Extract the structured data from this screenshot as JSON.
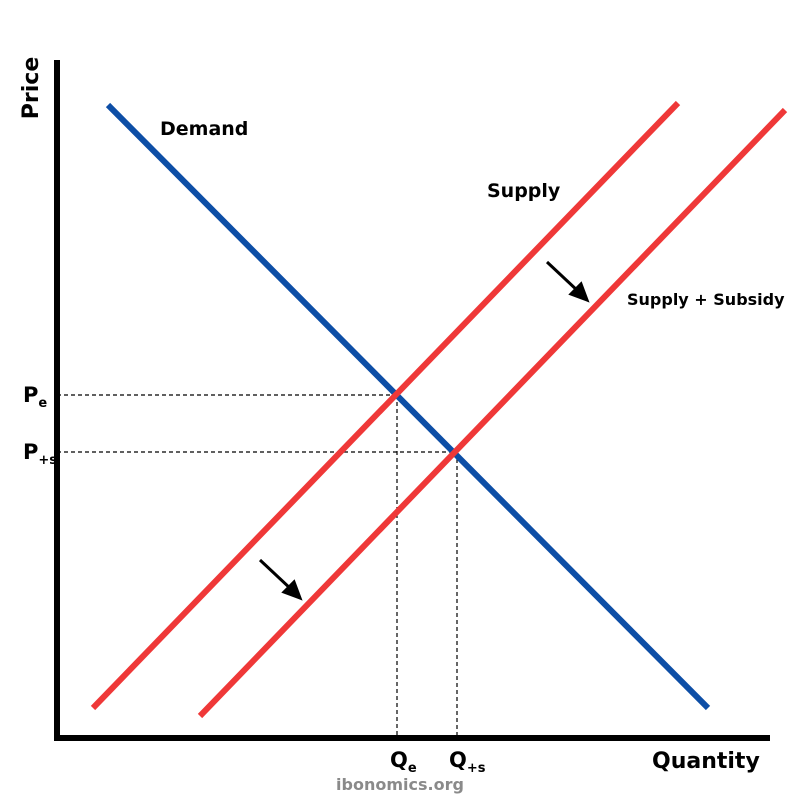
{
  "axes": {
    "y_label": "Price",
    "x_label": "Quantity"
  },
  "curves": {
    "demand": "Demand",
    "supply": "Supply",
    "supply_subsidy": "Supply + Subsidy"
  },
  "price_labels": [
    {
      "main": "P",
      "sub": "e"
    },
    {
      "main": "P",
      "sub": "+s"
    }
  ],
  "quantity_labels": [
    {
      "main": "Q",
      "sub": "e"
    },
    {
      "main": "Q",
      "sub": "+s"
    }
  ],
  "footer": {
    "source": "ibonomics.org"
  }
}
